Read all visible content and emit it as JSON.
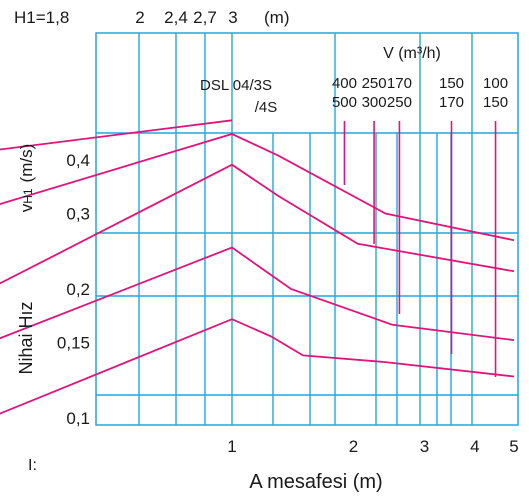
{
  "chart_data": {
    "type": "line",
    "xlabel": "A mesafesi (m)",
    "ylabel_main": "Nihai Hız",
    "ylabel_sub": "vH1 (m/s)",
    "ylabel_sub_base": "v",
    "ylabel_sub_index": "H1",
    "ylabel_sub_unit": "(m/s)",
    "x_scale": "log",
    "y_scale": "log",
    "xlim": [
      0.25,
      5.0
    ],
    "ylim": [
      0.1,
      0.5
    ],
    "x_ticks": [
      {
        "value": 1,
        "label": "1"
      },
      {
        "value": 2,
        "label": "2"
      },
      {
        "value": 3,
        "label": "3"
      },
      {
        "value": 4,
        "label": "4"
      },
      {
        "value": 5,
        "label": "5"
      }
    ],
    "y_ticks": [
      {
        "value": 0.1,
        "label": "0,1"
      },
      {
        "value": 0.15,
        "label": "0,15"
      },
      {
        "value": 0.2,
        "label": "0,2"
      },
      {
        "value": 0.3,
        "label": "0,3"
      },
      {
        "value": 0.4,
        "label": "0,4"
      }
    ],
    "top_axis": {
      "label_prefix": "H1=",
      "labels": [
        "1,8",
        "2",
        "2,4",
        "2,7",
        "3"
      ],
      "unit": "(m)"
    },
    "flow_header": "V (m³/h)",
    "model_label_1": "DSL 04/3S",
    "model_label_2": "/4S",
    "flow_columns": [
      {
        "top": "400",
        "bottom": "500",
        "x": 1.9
      },
      {
        "top": "250",
        "bottom": "300",
        "x": 2.25
      },
      {
        "top": "170",
        "bottom": "250",
        "x": 2.6
      },
      {
        "top": "150",
        "bottom": "170",
        "x": 3.5
      },
      {
        "top": "100",
        "bottom": "150",
        "x": 4.5
      }
    ],
    "series": [
      {
        "points": [
          [
            0.25,
            0.42
          ],
          [
            1.0,
            0.495
          ]
        ]
      },
      {
        "points": [
          [
            0.25,
            0.31
          ],
          [
            1.0,
            0.46
          ],
          [
            1.3,
            0.41
          ],
          [
            2.4,
            0.3
          ],
          [
            5.0,
            0.26
          ]
        ]
      },
      {
        "points": [
          [
            0.25,
            0.2
          ],
          [
            1.0,
            0.39
          ],
          [
            1.3,
            0.33
          ],
          [
            2.05,
            0.255
          ],
          [
            5.0,
            0.22
          ]
        ]
      },
      {
        "points": [
          [
            0.25,
            0.15
          ],
          [
            1.0,
            0.25
          ],
          [
            1.4,
            0.2
          ],
          [
            2.5,
            0.165
          ],
          [
            5.0,
            0.152
          ]
        ]
      },
      {
        "points": [
          [
            0.25,
            0.1
          ],
          [
            1.0,
            0.17
          ],
          [
            1.25,
            0.155
          ],
          [
            1.5,
            0.14
          ],
          [
            2.4,
            0.135
          ],
          [
            5.0,
            0.125
          ]
        ]
      }
    ],
    "colors": {
      "grid": "#1ea7e1",
      "line": "#e0147a",
      "text": "#1a1a1a"
    },
    "grid": true
  },
  "footer_mark": "I:"
}
